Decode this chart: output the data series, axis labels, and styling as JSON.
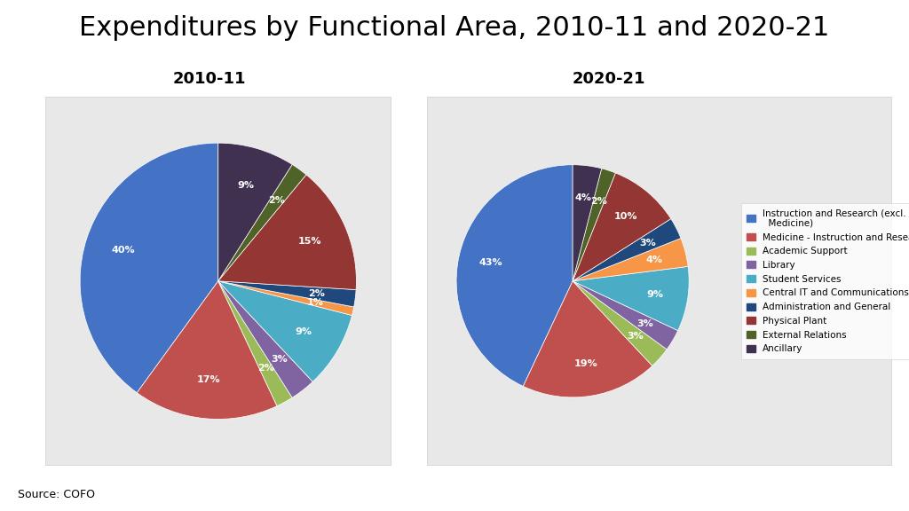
{
  "title": "Expenditures by Functional Area, 2010-11 and 2020-21",
  "title_fontsize": 22,
  "source_text": "Source: COFO",
  "subtitle_2010": "2010-11",
  "subtitle_2020": "2020-21",
  "subtitle_fontsize": 13,
  "categories": [
    "Instruction and Research (excl.\n  Medicine)",
    "Medicine - Instruction and Research",
    "Academic Support",
    "Library",
    "Student Services",
    "Central IT and Communications",
    "Administration and General",
    "Physical Plant",
    "External Relations",
    "Ancillary"
  ],
  "colors": [
    "#4472C4",
    "#C0504D",
    "#9BBB59",
    "#8064A2",
    "#4BACC6",
    "#F79646",
    "#1F497D",
    "#943634",
    "#4F6228",
    "#403151"
  ],
  "values_2010": [
    40,
    17,
    2,
    3,
    9,
    1,
    2,
    15,
    2,
    9
  ],
  "values_2020": [
    43,
    19,
    3,
    3,
    9,
    4,
    3,
    10,
    2,
    4
  ],
  "label_fontsize": 8,
  "box_background": "#e8e8e8",
  "fig_background": "#ffffff"
}
